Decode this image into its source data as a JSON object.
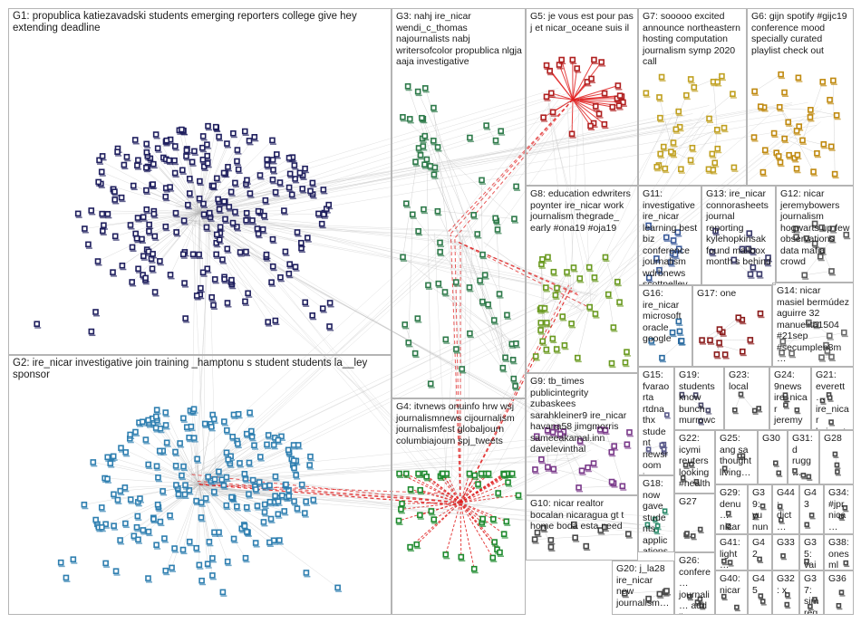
{
  "groups": [
    {
      "id": "G1",
      "label": "G1: propublica katiezavadski students emerging reporters college give hey extending deadline",
      "color": "#1f1f5e"
    },
    {
      "id": "G2",
      "label": "G2: ire_nicar investigative join training _hamptonu s student students la__ley sponsor",
      "color": "#2f7fb0"
    },
    {
      "id": "G3",
      "label": "G3: nahj ire_nicar wendi_c_thomas najournalists nabj writersofcolor propublica nlgja aaja investigative",
      "color": "#2e7a4a"
    },
    {
      "id": "G4",
      "label": "G4: itvnews onuinfo hrw wsj journalismnews cijournalism journalismfest globaljourn columbiajourn spj_tweets",
      "color": "#1e8a2e"
    },
    {
      "id": "G5",
      "label": "G5: je vous est pour pas j et nicar_oceane suis il",
      "color": "#b02020"
    },
    {
      "id": "G6",
      "label": "G6: gijn spotify #gijc19 conference mood specially curated playlist check out",
      "color": "#c08a10"
    },
    {
      "id": "G7",
      "label": "G7: sooooo excited announce northeastern hosting computation journalism symp 2020 call",
      "color": "#c0a020"
    },
    {
      "id": "G8",
      "label": "G8: education edwriters poynter ire_nicar work journalism thegrade_ early #ona19 #oja19",
      "color": "#6a9a20"
    },
    {
      "id": "G9",
      "label": "G9: tb_times publicintegrity zubaskees sarahkleiner9 ire_nicar havana58 jimgmorris sameeakamal.inn davelevinthal",
      "color": "#7a3a8a"
    },
    {
      "id": "G10",
      "label": "G10: nicar realtor bocalan nicaragua gt t home boda esta need",
      "color": "#4a4a4a"
    },
    {
      "id": "G11",
      "label": "G11: investigative ire_nicar learning best biz conference journalism wdrbnews scottpelley iubloomington",
      "color": "#3a5a9a"
    },
    {
      "id": "G12",
      "label": "G12: nicar jeremybowers journalism hogwarts up few observations data mafia crowd",
      "color": "#5a5a5a"
    },
    {
      "id": "G13",
      "label": "G13: ire_nicar connorasheets journal reporting kylehopkinsak found mailbox month s behind",
      "color": "#3a3a6a"
    },
    {
      "id": "G14",
      "label": "G14: nicar masiel bermúdez aguirre 32 manuelita1504 #21sep #secumplen8m…",
      "color": "#6a6a6a"
    },
    {
      "id": "G15",
      "label": "G15: fvaraorta rtdna thx student newsroom journos ryanbwitt dircetoca story…",
      "color": "#5a5a8a"
    },
    {
      "id": "G16",
      "label": "G16: ire_nicar microsoft oracle google",
      "color": "#2a6aa0"
    },
    {
      "id": "G17",
      "label": "G17: one",
      "color": "#8a1a1a"
    },
    {
      "id": "G18",
      "label": "G18: now gave students applications open dow jones news…",
      "color": "#2a8a6a"
    },
    {
      "id": "G19",
      "label": "G19: students know bunch murrowc…",
      "color": "#4a4a6a"
    },
    {
      "id": "G20",
      "label": "G20: j_la28 ire_nicar new journalism…",
      "color": "#4a4a4a"
    },
    {
      "id": "G21",
      "label": "G21: everett… ire_nicar byjoeyt… sure…",
      "color": "#4a4a4a"
    },
    {
      "id": "G22",
      "label": "G22: icymi reuters looking #health…",
      "color": "#4a4a4a"
    },
    {
      "id": "G23",
      "label": "G23: local",
      "color": "#4a4a4a"
    },
    {
      "id": "G24",
      "label": "G24: 9news ire_nicar jeremy… kutv2n…",
      "color": "#4a4a4a"
    },
    {
      "id": "G25",
      "label": "G25: ang sa thought living…",
      "color": "#4a4a4a"
    },
    {
      "id": "G26",
      "label": "G26: confere… journali… add list…",
      "color": "#4a4a4a"
    },
    {
      "id": "G27",
      "label": "G27",
      "color": "#4a4a4a"
    },
    {
      "id": "G28",
      "label": "G28",
      "color": "#4a4a4a"
    },
    {
      "id": "G29",
      "label": "G29: denu… nicar cuen…",
      "color": "#4a4a4a"
    },
    {
      "id": "G30",
      "label": "G30",
      "color": "#4a4a4a"
    },
    {
      "id": "G31",
      "label": "G31: d rugg…",
      "color": "#4a4a4a"
    },
    {
      "id": "G32",
      "label": "G32: x",
      "color": "#4a4a4a"
    },
    {
      "id": "G33",
      "label": "G33",
      "color": "#4a4a4a"
    },
    {
      "id": "G34",
      "label": "G34: #jpr nica…",
      "color": "#4a4a4a"
    },
    {
      "id": "G35",
      "label": "G35: vais pon…",
      "color": "#4a4a4a"
    },
    {
      "id": "G36",
      "label": "G36",
      "color": "#4a4a4a"
    },
    {
      "id": "G37",
      "label": "G37: sim reg…",
      "color": "#4a4a4a"
    },
    {
      "id": "G38",
      "label": "G38: ones ml",
      "color": "#4a4a4a"
    },
    {
      "id": "G39",
      "label": "G39: yu nun…",
      "color": "#4a4a4a"
    },
    {
      "id": "G40",
      "label": "G40: nicar",
      "color": "#4a4a4a"
    },
    {
      "id": "G41",
      "label": "G41: light… talks…",
      "color": "#4a4a4a"
    },
    {
      "id": "G42",
      "label": "G42",
      "color": "#4a4a4a"
    },
    {
      "id": "G43",
      "label": "G43",
      "color": "#4a4a4a"
    },
    {
      "id": "G44",
      "label": "G44: dict…",
      "color": "#4a4a4a"
    },
    {
      "id": "G45",
      "label": "G45",
      "color": "#4a4a4a"
    }
  ],
  "edge_color_light": "#b8b8b8",
  "edge_color_red": "#e02020"
}
